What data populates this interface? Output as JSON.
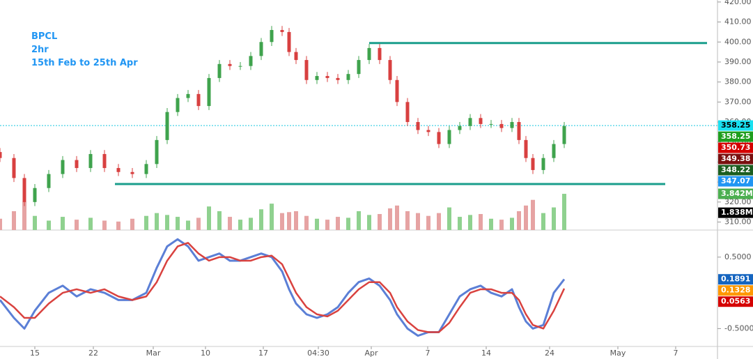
{
  "chart_data": {
    "type": "candlestick",
    "title": "BPCL",
    "subtitle": "2hr",
    "period": "15th Feb to 25th Apr",
    "x": [
      0,
      2,
      3.5,
      5,
      7,
      9,
      11,
      13,
      15,
      17,
      19,
      21,
      22.5,
      24,
      25.5,
      27,
      28.5,
      30,
      31.5,
      33,
      34.5,
      36,
      37.5,
      39,
      40.5,
      41.5,
      42.5,
      44,
      45.5,
      47,
      48.5,
      50,
      51.5,
      53,
      54.5,
      56,
      57,
      58.5,
      60,
      61.5,
      63,
      64.5,
      66,
      67.5,
      69,
      70.5,
      72,
      73.5,
      74.5,
      75.5,
      76.5,
      78,
      79.5,
      81
    ],
    "open": [
      345,
      342,
      332,
      320,
      327,
      334,
      341,
      337,
      344,
      337,
      335,
      334,
      339,
      351,
      365,
      372,
      374,
      368,
      382,
      389,
      388,
      388,
      393,
      400,
      406,
      405,
      395,
      391,
      381,
      383,
      382,
      381,
      384,
      391,
      397,
      391,
      381,
      370,
      360,
      356,
      355,
      349,
      356,
      358,
      362,
      359,
      359,
      357,
      360,
      351,
      342,
      336,
      342,
      349
    ],
    "high": [
      347,
      344,
      334,
      329,
      336,
      343,
      343,
      346,
      346,
      339,
      337,
      341,
      353,
      367,
      374,
      376,
      376,
      384,
      391,
      391,
      390,
      395,
      402,
      408,
      408,
      407,
      397,
      393,
      385,
      385,
      384,
      386,
      393,
      399,
      399,
      393,
      383,
      372,
      362,
      358,
      357,
      358,
      360,
      364,
      364,
      361,
      361,
      362,
      362,
      353,
      344,
      344,
      351,
      360
    ],
    "low": [
      340,
      330,
      318,
      318,
      325,
      332,
      335,
      335,
      335,
      333,
      332,
      332,
      337,
      349,
      363,
      370,
      366,
      366,
      380,
      386,
      386,
      386,
      391,
      398,
      403,
      393,
      389,
      379,
      379,
      380,
      379,
      379,
      382,
      389,
      389,
      379,
      368,
      358,
      354,
      353,
      347,
      347,
      354,
      356,
      357,
      357,
      355,
      355,
      349,
      340,
      334,
      334,
      340,
      347
    ],
    "close": [
      342,
      332,
      320,
      327,
      334,
      341,
      337,
      344,
      337,
      335,
      334,
      339,
      351,
      365,
      372,
      374,
      368,
      382,
      389,
      388,
      388,
      393,
      400,
      406,
      405,
      395,
      391,
      381,
      383,
      382,
      381,
      384,
      391,
      397,
      391,
      381,
      370,
      360,
      356,
      355,
      349,
      356,
      358,
      362,
      359,
      359,
      357,
      360,
      351,
      342,
      336,
      342,
      349,
      358
    ],
    "volume": [
      1.2,
      2.0,
      3.0,
      1.5,
      1.0,
      1.4,
      1.1,
      1.3,
      1.0,
      0.9,
      1.2,
      1.5,
      1.8,
      1.6,
      1.4,
      1.0,
      1.3,
      2.5,
      2.0,
      1.4,
      1.1,
      1.3,
      2.2,
      2.8,
      1.8,
      1.9,
      2.0,
      1.5,
      1.2,
      1.1,
      1.4,
      1.3,
      2.0,
      1.6,
      1.7,
      2.3,
      2.6,
      2.0,
      1.8,
      1.5,
      1.8,
      2.4,
      1.4,
      1.6,
      1.7,
      1.2,
      1.1,
      1.3,
      2.0,
      2.6,
      3.2,
      1.8,
      2.4,
      3.842
    ],
    "macd": [
      -0.1,
      -0.35,
      -0.5,
      -0.25,
      0.0,
      0.1,
      -0.05,
      0.05,
      0.0,
      -0.1,
      -0.1,
      0.0,
      0.35,
      0.65,
      0.75,
      0.65,
      0.45,
      0.5,
      0.55,
      0.45,
      0.45,
      0.5,
      0.55,
      0.5,
      0.3,
      0.05,
      -0.15,
      -0.3,
      -0.35,
      -0.3,
      -0.2,
      0.0,
      0.15,
      0.2,
      0.1,
      -0.1,
      -0.3,
      -0.5,
      -0.6,
      -0.55,
      -0.55,
      -0.3,
      -0.05,
      0.05,
      0.1,
      0.0,
      -0.05,
      0.05,
      -0.2,
      -0.4,
      -0.5,
      -0.45,
      0.0,
      0.19
    ],
    "signal": [
      -0.05,
      -0.2,
      -0.35,
      -0.35,
      -0.15,
      0.0,
      0.05,
      0.0,
      0.05,
      -0.05,
      -0.1,
      -0.05,
      0.15,
      0.45,
      0.65,
      0.7,
      0.55,
      0.45,
      0.5,
      0.5,
      0.45,
      0.45,
      0.5,
      0.52,
      0.4,
      0.2,
      0.0,
      -0.2,
      -0.3,
      -0.33,
      -0.25,
      -0.1,
      0.05,
      0.15,
      0.15,
      0.0,
      -0.2,
      -0.4,
      -0.52,
      -0.55,
      -0.55,
      -0.42,
      -0.2,
      0.0,
      0.05,
      0.05,
      0.0,
      0.0,
      -0.1,
      -0.3,
      -0.45,
      -0.5,
      -0.25,
      0.06
    ],
    "up_color": "#3fa34d",
    "down_color": "#d84040",
    "volume_up_color": "#8fd18f",
    "volume_down_color": "#e6a3a3",
    "macd_color": "#5b7fd6",
    "signal_color": "#d9423f",
    "levels": [
      {
        "value": 399.5,
        "x": [
          53,
          101.5
        ],
        "color": "#1a9e8c"
      },
      {
        "value": 329,
        "x": [
          16.5,
          95.5
        ],
        "color": "#1a9e8c"
      }
    ],
    "last_price": 358.25,
    "xlim": [
      0,
      103
    ],
    "ylim": [
      306,
      421
    ],
    "vlim": [
      0,
      24.4
    ],
    "macd_lim": [
      -0.75,
      0.83
    ],
    "xticks": [
      {
        "value": 5,
        "label": "15"
      },
      {
        "value": 13.4,
        "label": "22"
      },
      {
        "value": 22,
        "label": "Mar"
      },
      {
        "value": 29.5,
        "label": "10"
      },
      {
        "value": 37.8,
        "label": "17"
      },
      {
        "value": 45.7,
        "label": "04:30"
      },
      {
        "value": 53.3,
        "label": "Apr"
      },
      {
        "value": 61.4,
        "label": "7"
      },
      {
        "value": 69.8,
        "label": "14"
      },
      {
        "value": 78.9,
        "label": "24"
      },
      {
        "value": 88.7,
        "label": "May"
      },
      {
        "value": 97,
        "label": "7"
      }
    ],
    "yticks": [
      {
        "value": 310,
        "label": "310.00"
      },
      {
        "value": 320,
        "label": "320.00"
      },
      {
        "value": 330,
        "label": "330.00"
      },
      {
        "value": 340,
        "label": "340.00"
      },
      {
        "value": 350,
        "label": "350.00"
      },
      {
        "value": 360,
        "label": "360.00"
      },
      {
        "value": 370,
        "label": "370.00"
      },
      {
        "value": 380,
        "label": "380.00"
      },
      {
        "value": 390,
        "label": "390.00"
      },
      {
        "value": 400,
        "label": "400.00"
      },
      {
        "value": 410,
        "label": "410.00"
      },
      {
        "value": 420,
        "label": "420.00"
      }
    ],
    "macd_ticks": [
      {
        "value": 0.5,
        "label": "0.5000"
      },
      {
        "value": -0.5,
        "label": "-0.5000"
      }
    ],
    "price_labels": [
      {
        "value": 358.25,
        "color": "#18e0f0",
        "text_color": "#000000"
      },
      {
        "value": 358.25,
        "color": "#1e9e1e",
        "text_color": "#ffffff"
      },
      {
        "value": 350.73,
        "color": "#d50000",
        "text_color": "#ffffff"
      },
      {
        "value": 349.38,
        "color": "#7a1010",
        "text_color": "#ffffff"
      },
      {
        "value": 348.22,
        "color": "#1b5e20",
        "text_color": "#ffffff"
      },
      {
        "value": 347.07,
        "color": "#2196f3",
        "text_color": "#ffffff"
      }
    ],
    "volume_labels": [
      {
        "value": 3.842,
        "label": "3.842M",
        "color": "#4caf50"
      },
      {
        "value": 1.838,
        "label": "1.838M",
        "color": "#000000"
      }
    ],
    "macd_labels": [
      {
        "value": 0.1891,
        "color": "#1565c0"
      },
      {
        "value": 0.1328,
        "color": "#ff9800"
      },
      {
        "value": 0.0563,
        "color": "#d50000"
      }
    ]
  }
}
